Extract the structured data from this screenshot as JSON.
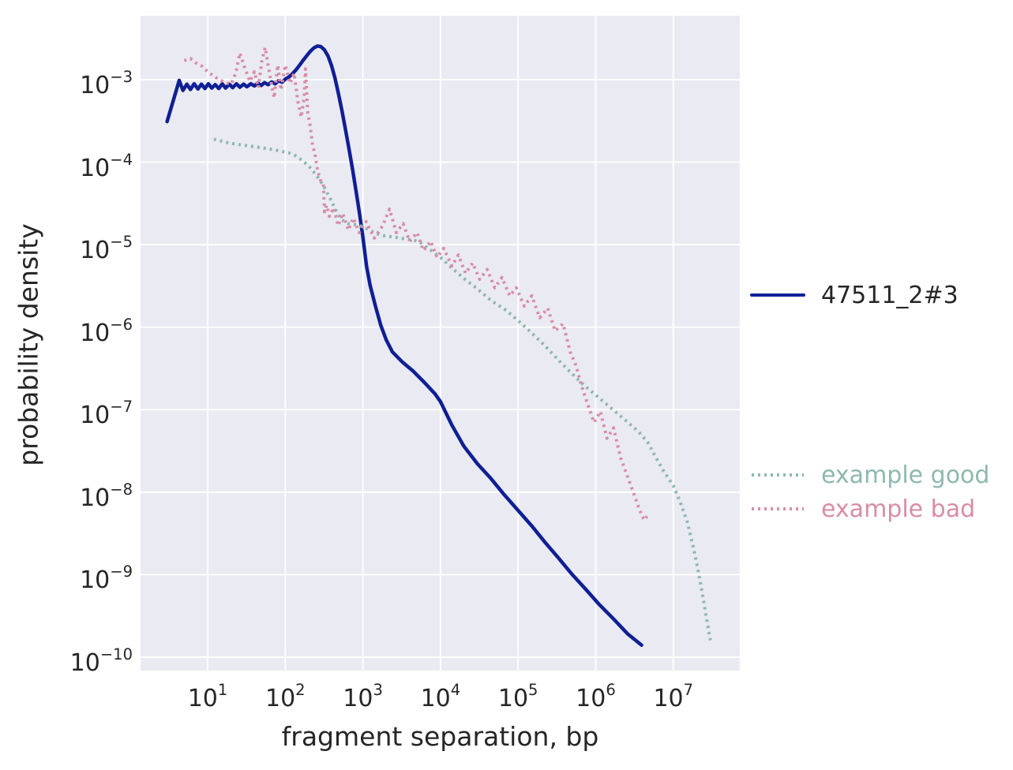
{
  "figure": {
    "background": "#ffffff",
    "plot_background": "#eaeaf2",
    "grid_color": "#ffffff",
    "text_color": "#262626"
  },
  "chart_data": {
    "type": "line",
    "title": "",
    "xlabel": "fragment separation, bp",
    "ylabel": "probability density",
    "x_scale": "log",
    "y_scale": "log",
    "grid": true,
    "legend_position": "right-outside",
    "xlim_log10": [
      0.135,
      7.857
    ],
    "ylim_log10": [
      -10.163,
      -2.226
    ],
    "x_tick_exponents": [
      1,
      2,
      3,
      4,
      5,
      6,
      7
    ],
    "y_tick_exponents": [
      -3,
      -4,
      -5,
      -6,
      -7,
      -8,
      -9,
      -10
    ],
    "tick_base": "10",
    "series": [
      {
        "name": "47511_2#3",
        "color": "#0f1f94",
        "style": "solid",
        "linewidth": 4.5,
        "points": [
          [
            3,
            0.00031
          ],
          [
            4.3,
            0.00098
          ],
          [
            4.8,
            0.00074
          ],
          [
            5.4,
            0.00088
          ],
          [
            6,
            0.00076
          ],
          [
            6.7,
            0.00089
          ],
          [
            7.5,
            0.00077
          ],
          [
            8.3,
            0.00088
          ],
          [
            9.2,
            0.00078
          ],
          [
            10.2,
            0.00089
          ],
          [
            11.3,
            0.00079
          ],
          [
            12.5,
            0.00087
          ],
          [
            13.9,
            0.00078
          ],
          [
            15.4,
            0.00089
          ],
          [
            17,
            0.00079
          ],
          [
            19,
            0.00088
          ],
          [
            21,
            0.0008
          ],
          [
            23.5,
            0.00089
          ],
          [
            26,
            0.00081
          ],
          [
            29,
            0.00088
          ],
          [
            32,
            0.00082
          ],
          [
            36,
            0.00089
          ],
          [
            40,
            0.00084
          ],
          [
            44,
            0.00091
          ],
          [
            49,
            0.00085
          ],
          [
            54,
            0.00092
          ],
          [
            60,
            0.00087
          ],
          [
            67,
            0.00094
          ],
          [
            74,
            0.00089
          ],
          [
            82,
            0.00097
          ],
          [
            91,
            0.00093
          ],
          [
            101,
            0.00102
          ],
          [
            112,
            0.00108
          ],
          [
            124,
            0.00118
          ],
          [
            138,
            0.00132
          ],
          [
            153,
            0.0015
          ],
          [
            170,
            0.00172
          ],
          [
            189,
            0.00195
          ],
          [
            210,
            0.0022
          ],
          [
            233,
            0.00242
          ],
          [
            259,
            0.00255
          ],
          [
            287,
            0.00252
          ],
          [
            319,
            0.0023
          ],
          [
            354,
            0.00195
          ],
          [
            393,
            0.0015
          ],
          [
            436,
            0.00105
          ],
          [
            484,
            0.00068
          ],
          [
            537,
            0.00042
          ],
          [
            596,
            0.00025
          ],
          [
            662,
            0.000145
          ],
          [
            735,
            8.2e-05
          ],
          [
            815,
            4.5e-05
          ],
          [
            905,
            2.4e-05
          ],
          [
            1005,
            1.2e-05
          ],
          [
            1115,
            5.5e-06
          ],
          [
            1240,
            3.2e-06
          ],
          [
            1450,
            1.8e-06
          ],
          [
            1700,
            1.05e-06
          ],
          [
            2000,
            7e-07
          ],
          [
            2400,
            5e-07
          ],
          [
            3200,
            3.8e-07
          ],
          [
            4500,
            2.9e-07
          ],
          [
            6300,
            2.1e-07
          ],
          [
            8500,
            1.55e-07
          ],
          [
            10000,
            1.25e-07
          ],
          [
            14000,
            6.5e-08
          ],
          [
            20000,
            3.6e-08
          ],
          [
            30000,
            2.2e-08
          ],
          [
            45000,
            1.45e-08
          ],
          [
            65000,
            9.5e-09
          ],
          [
            100000,
            6e-09
          ],
          [
            150000,
            3.9e-09
          ],
          [
            220000,
            2.5e-09
          ],
          [
            330000,
            1.6e-09
          ],
          [
            500000,
            1e-09
          ],
          [
            750000,
            6.6e-10
          ],
          [
            1100000,
            4.4e-10
          ],
          [
            1700000,
            2.9e-10
          ],
          [
            2600000,
            1.9e-10
          ],
          [
            3900000,
            1.4e-10
          ]
        ]
      },
      {
        "name": "example good",
        "color": "#8db8af",
        "style": "dotted",
        "linewidth": 4,
        "points": [
          [
            12,
            0.00019
          ],
          [
            15,
            0.00018
          ],
          [
            19,
            0.00017
          ],
          [
            24,
            0.000165
          ],
          [
            30,
            0.00016
          ],
          [
            38,
            0.000155
          ],
          [
            48,
            0.00015
          ],
          [
            60,
            0.000145
          ],
          [
            75,
            0.00014
          ],
          [
            90,
            0.000135
          ],
          [
            110,
            0.00013
          ],
          [
            135,
            0.00012
          ],
          [
            165,
            0.000105
          ],
          [
            200,
            9e-05
          ],
          [
            250,
            7e-05
          ],
          [
            310,
            5.2e-05
          ],
          [
            380,
            3.6e-05
          ],
          [
            450,
            2.6e-05
          ],
          [
            530,
            2e-05
          ],
          [
            650,
            1.8e-05
          ],
          [
            800,
            1.75e-05
          ],
          [
            1000,
            1.65e-05
          ],
          [
            1300,
            1.45e-05
          ],
          [
            1700,
            1.3e-05
          ],
          [
            2300,
            1.25e-05
          ],
          [
            3000,
            1.2e-05
          ],
          [
            4000,
            1.15e-05
          ],
          [
            5200,
            1.1e-05
          ],
          [
            7000,
            9e-06
          ],
          [
            10000,
            7e-06
          ],
          [
            14000,
            5.2e-06
          ],
          [
            20000,
            3.9e-06
          ],
          [
            30000,
            2.9e-06
          ],
          [
            45000,
            2.1e-06
          ],
          [
            70000,
            1.6e-06
          ],
          [
            100000,
            1.2e-06
          ],
          [
            150000,
            8.5e-07
          ],
          [
            220000,
            6e-07
          ],
          [
            330000,
            4e-07
          ],
          [
            500000,
            2.7e-07
          ],
          [
            700000,
            2e-07
          ],
          [
            1000000,
            1.5e-07
          ],
          [
            1400000,
            1.15e-07
          ],
          [
            1900000,
            9e-08
          ],
          [
            2600000,
            7e-08
          ],
          [
            3500000,
            5.5e-08
          ],
          [
            4700000,
            4e-08
          ],
          [
            6000000,
            2.6e-08
          ],
          [
            7500000,
            1.8e-08
          ],
          [
            10000000,
            1.2e-08
          ],
          [
            12000000,
            8e-09
          ],
          [
            15000000,
            4.5e-09
          ],
          [
            18000000,
            2.2e-09
          ],
          [
            21000000,
            1.1e-09
          ],
          [
            24000000,
            5.5e-10
          ],
          [
            27000000,
            2.8e-10
          ],
          [
            30000000,
            1.6e-10
          ]
        ]
      },
      {
        "name": "example bad",
        "color": "#d88ca7",
        "style": "dotted",
        "linewidth": 4,
        "points": [
          [
            5,
            0.0017
          ],
          [
            6,
            0.0018
          ],
          [
            7,
            0.0016
          ],
          [
            8.5,
            0.00145
          ],
          [
            10,
            0.00125
          ],
          [
            12,
            0.0011
          ],
          [
            14,
            0.001
          ],
          [
            17,
            0.00092
          ],
          [
            20,
            0.00088
          ],
          [
            23,
            0.0012
          ],
          [
            26,
            0.0021
          ],
          [
            30,
            0.0014
          ],
          [
            35,
            0.00095
          ],
          [
            40,
            0.00125
          ],
          [
            45,
            0.0008
          ],
          [
            50,
            0.0017
          ],
          [
            55,
            0.00245
          ],
          [
            60,
            0.0015
          ],
          [
            66,
            0.0009
          ],
          [
            72,
            0.0006
          ],
          [
            80,
            0.0015
          ],
          [
            88,
            0.00075
          ],
          [
            100,
            0.0015
          ],
          [
            115,
            0.0009
          ],
          [
            130,
            0.0012
          ],
          [
            145,
            0.00055
          ],
          [
            160,
            0.00035
          ],
          [
            175,
            0.0006
          ],
          [
            182,
            0.00135
          ],
          [
            195,
            0.0004
          ],
          [
            210,
            0.00027
          ],
          [
            225,
            0.00016
          ],
          [
            240,
            0.00013
          ],
          [
            260,
            8e-05
          ],
          [
            285,
            6e-05
          ],
          [
            310,
            5.5e-05
          ],
          [
            320,
            2.5e-05
          ],
          [
            340,
            3e-05
          ],
          [
            370,
            2.2e-05
          ],
          [
            420,
            2.8e-05
          ],
          [
            480,
            1.7e-05
          ],
          [
            550,
            2.4e-05
          ],
          [
            650,
            1.5e-05
          ],
          [
            750,
            2.1e-05
          ],
          [
            900,
            1.4e-05
          ],
          [
            1100,
            1.9e-05
          ],
          [
            1400,
            1.2e-05
          ],
          [
            1800,
            1.7e-05
          ],
          [
            2200,
            2.7e-05
          ],
          [
            2700,
            1.4e-05
          ],
          [
            3300,
            1.8e-05
          ],
          [
            4000,
            1.1e-05
          ],
          [
            5000,
            1.4e-05
          ],
          [
            6000,
            8.5e-06
          ],
          [
            7500,
            1.1e-05
          ],
          [
            9000,
            7e-06
          ],
          [
            11000,
            9e-06
          ],
          [
            14000,
            5.5e-06
          ],
          [
            17000,
            7.5e-06
          ],
          [
            21000,
            4.5e-06
          ],
          [
            26000,
            6e-06
          ],
          [
            32000,
            3.8e-06
          ],
          [
            40000,
            5e-06
          ],
          [
            50000,
            3e-06
          ],
          [
            62000,
            4e-06
          ],
          [
            78000,
            2.4e-06
          ],
          [
            95000,
            3e-06
          ],
          [
            120000,
            1.8e-06
          ],
          [
            150000,
            2.4e-06
          ],
          [
            190000,
            1.3e-06
          ],
          [
            240000,
            1.7e-06
          ],
          [
            300000,
            9e-07
          ],
          [
            380000,
            1.1e-06
          ],
          [
            470000,
            5e-07
          ],
          [
            560000,
            3.4e-07
          ],
          [
            650000,
            2e-07
          ],
          [
            780000,
            1.2e-07
          ],
          [
            950000,
            7e-08
          ],
          [
            1150000,
            9.5e-08
          ],
          [
            1400000,
            4.5e-08
          ],
          [
            1700000,
            6e-08
          ],
          [
            2100000,
            2.6e-08
          ],
          [
            2600000,
            1.5e-08
          ],
          [
            3100000,
            9.5e-09
          ],
          [
            3700000,
            6e-09
          ],
          [
            4200000,
            4.6e-09
          ],
          [
            4600000,
            5.1e-09
          ]
        ]
      }
    ],
    "legends": [
      {
        "entries": [
          {
            "label": "47511_2#3",
            "series_index": 0,
            "text_color": "#262626"
          }
        ]
      },
      {
        "entries": [
          {
            "label": "example good",
            "series_index": 1,
            "text_color": "#8db8af"
          },
          {
            "label": "example bad",
            "series_index": 2,
            "text_color": "#d88ca7"
          }
        ]
      }
    ]
  }
}
